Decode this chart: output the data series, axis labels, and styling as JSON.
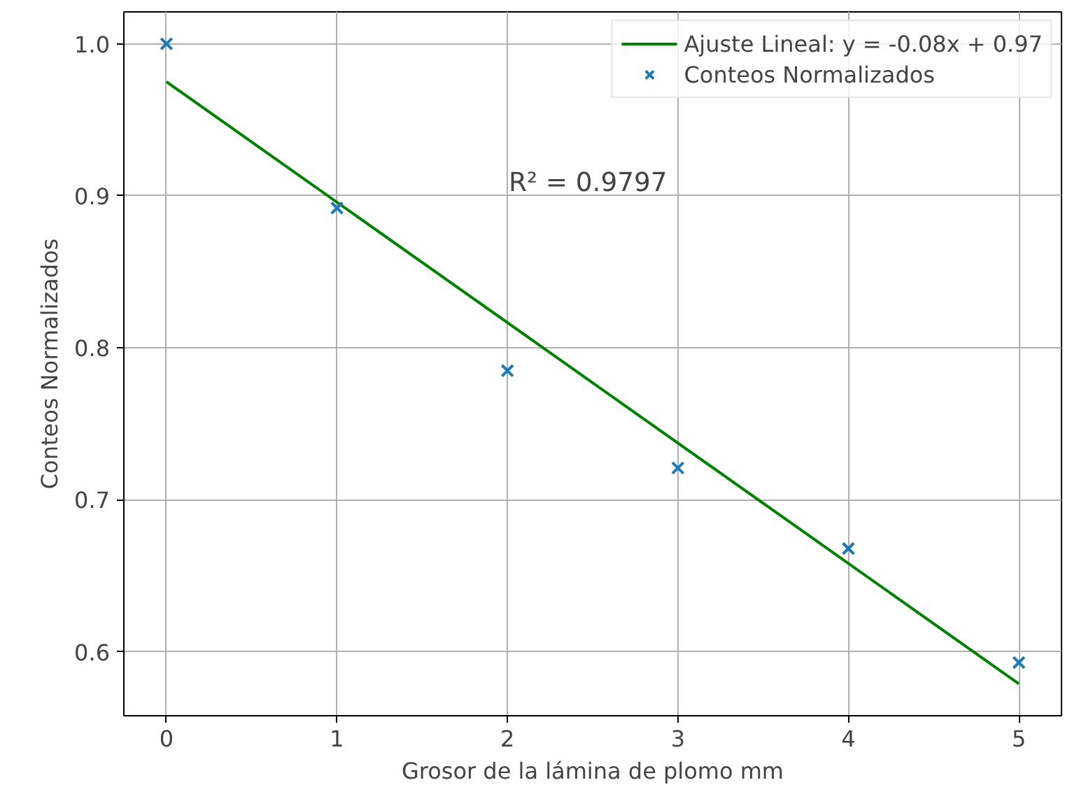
{
  "chart_data": {
    "type": "scatter",
    "xlabel": "Grosor de la lámina de plomo mm",
    "ylabel": "Conteos Normalizados",
    "x": [
      0,
      1,
      2,
      3,
      4,
      5
    ],
    "series": [
      {
        "name": "Ajuste Lineal: y = -0.08x + 0.97",
        "type": "line",
        "color": "#008000",
        "x": [
          0,
          5
        ],
        "values": [
          0.975,
          0.579
        ],
        "line_style": "solid"
      },
      {
        "name": "Conteos Normalizados",
        "color": "#1f77b4",
        "values": [
          1.0,
          0.892,
          0.785,
          0.721,
          0.668,
          0.593
        ],
        "marker": "cross"
      }
    ],
    "xlim": [
      -0.25,
      5.25
    ],
    "xticks": [
      0,
      1,
      2,
      3,
      4,
      5
    ],
    "ylim": [
      0.558,
      1.021
    ],
    "yticks": [
      0.6,
      0.7,
      0.8,
      0.9,
      {
        "value": 1,
        "label": "1.0"
      }
    ],
    "annotations": [
      "R² = 0.9797"
    ],
    "grid": true,
    "legend": "top right"
  }
}
